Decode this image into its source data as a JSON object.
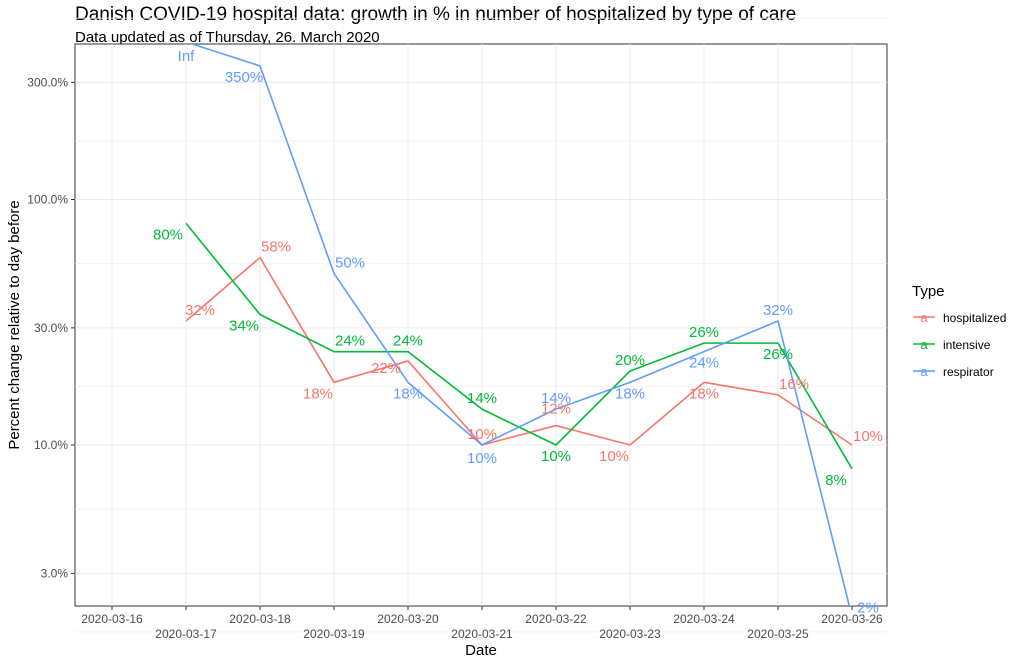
{
  "chart_data": {
    "type": "line",
    "title": "Danish COVID-19 hospital data: growth in % in number of hospitalized by type of care",
    "subtitle": "Data updated as of Thursday, 26. March 2020",
    "xlabel": "Date",
    "ylabel": "Percent change relative to day before",
    "y_scale": "log",
    "ylim": [
      2.5,
      450
    ],
    "y_ticks": [
      {
        "value": 3,
        "label": "3.0%"
      },
      {
        "value": 10,
        "label": "10.0%"
      },
      {
        "value": 30,
        "label": "30.0%"
      },
      {
        "value": 100,
        "label": "100.0%"
      },
      {
        "value": 300,
        "label": "300.0%"
      }
    ],
    "x": [
      "2020-03-16",
      "2020-03-17",
      "2020-03-18",
      "2020-03-19",
      "2020-03-20",
      "2020-03-21",
      "2020-03-22",
      "2020-03-23",
      "2020-03-24",
      "2020-03-25",
      "2020-03-26"
    ],
    "grid": true,
    "legend": {
      "title": "Type",
      "position": "right",
      "key_glyph": "a"
    },
    "series": [
      {
        "name": "hospitalized",
        "color": "#F8766D",
        "values": [
          null,
          32,
          58,
          18,
          22,
          10,
          12,
          10,
          18,
          16,
          10
        ],
        "labels": [
          null,
          "32%",
          "58%",
          "18%",
          "22%",
          "10%",
          "12%",
          "10%",
          "18%",
          "16%",
          "10%"
        ]
      },
      {
        "name": "intensive",
        "color": "#00BA38",
        "values": [
          null,
          80,
          34,
          24,
          24,
          14,
          10,
          20,
          26,
          26,
          8
        ],
        "labels": [
          null,
          "80%",
          "34%",
          "24%",
          "24%",
          "14%",
          "10%",
          "20%",
          "26%",
          "26%",
          "8%"
        ]
      },
      {
        "name": "respirator",
        "color": "#619CFF",
        "values": [
          null,
          "Inf",
          350,
          50,
          18,
          10,
          14,
          18,
          24,
          32,
          2
        ],
        "labels": [
          null,
          "Inf",
          "350%",
          "50%",
          "18%",
          "10%",
          "14%",
          "18%",
          "24%",
          "32%",
          "2%"
        ]
      }
    ]
  }
}
